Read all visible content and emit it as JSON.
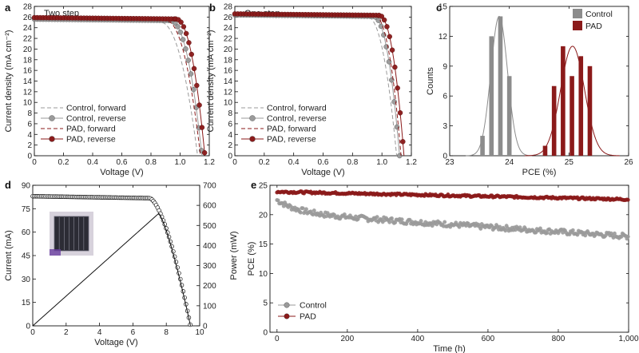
{
  "chart_data": [
    {
      "id": "a",
      "panel_letter": "a",
      "type": "line",
      "title": "Two step",
      "xlabel": "Voltage (V)",
      "ylabel": "Current density (mA cm⁻²)",
      "xlim": [
        0,
        1.2
      ],
      "ylim": [
        0,
        28
      ],
      "xticks": [
        "0",
        "0.2",
        "0.4",
        "0.6",
        "0.8",
        "1.0",
        "1.2"
      ],
      "yticks": [
        "0",
        "2",
        "4",
        "6",
        "8",
        "10",
        "12",
        "14",
        "16",
        "18",
        "20",
        "22",
        "24",
        "26",
        "28"
      ],
      "legend_position": "bottom-left",
      "series": [
        {
          "name": "Control, forward",
          "color": "#9a9a9a",
          "style": "dashed",
          "jsc": 25.3,
          "voc": 1.12,
          "knee": 0.86
        },
        {
          "name": "Control, reverse",
          "color": "#9a9a9a",
          "style": "line-marker",
          "jsc": 25.6,
          "voc": 1.15,
          "knee": 0.93
        },
        {
          "name": "PAD, forward",
          "color": "#8b1a1a",
          "style": "dashed",
          "jsc": 25.6,
          "voc": 1.14,
          "knee": 0.9
        },
        {
          "name": "PAD, reverse",
          "color": "#8b1a1a",
          "style": "line-marker",
          "jsc": 25.9,
          "voc": 1.17,
          "knee": 0.97
        }
      ]
    },
    {
      "id": "b",
      "panel_letter": "b",
      "type": "line",
      "title": "One step",
      "xlabel": "Voltage (V)",
      "ylabel": "Current density (mA cm⁻²)",
      "xlim": [
        0,
        1.2
      ],
      "ylim": [
        0,
        28
      ],
      "xticks": [
        "0",
        "0.2",
        "0.4",
        "0.6",
        "0.8",
        "1.0",
        "1.2"
      ],
      "yticks": [
        "0",
        "2",
        "4",
        "6",
        "8",
        "10",
        "12",
        "14",
        "16",
        "18",
        "20",
        "22",
        "24",
        "26",
        "28"
      ],
      "legend_position": "bottom-left",
      "series": [
        {
          "name": "Control, forward",
          "color": "#9a9a9a",
          "style": "dashed",
          "jsc": 26.3,
          "voc": 1.1,
          "knee": 0.9
        },
        {
          "name": "Control, reverse",
          "color": "#9a9a9a",
          "style": "line-marker",
          "jsc": 26.4,
          "voc": 1.12,
          "knee": 0.94
        },
        {
          "name": "PAD, forward",
          "color": "#8b1a1a",
          "style": "dashed",
          "jsc": 26.5,
          "voc": 1.13,
          "knee": 0.95
        },
        {
          "name": "PAD, reverse",
          "color": "#8b1a1a",
          "style": "line-marker",
          "jsc": 26.6,
          "voc": 1.15,
          "knee": 0.98
        }
      ]
    },
    {
      "id": "c",
      "panel_letter": "c",
      "type": "bar",
      "title": "",
      "xlabel": "PCE (%)",
      "ylabel": "Counts",
      "xlim": [
        23,
        26
      ],
      "ylim": [
        0,
        15
      ],
      "xticks": [
        "23",
        "24",
        "25",
        "26"
      ],
      "yticks": [
        "0",
        "3",
        "6",
        "9",
        "12",
        "15"
      ],
      "legend_position": "top-right",
      "series": [
        {
          "name": "Control",
          "color": "#8c8c8c",
          "bins": [
            23.55,
            23.7,
            23.85,
            24.0
          ],
          "values": [
            2,
            12,
            14,
            8
          ],
          "fit_mean": 23.83,
          "fit_sd": 0.14,
          "fit_peak": 14
        },
        {
          "name": "PAD",
          "color": "#8b1a1a",
          "bins": [
            24.6,
            24.75,
            24.9,
            25.05,
            25.2,
            25.35
          ],
          "values": [
            1,
            7,
            11,
            8,
            10,
            9
          ],
          "fit_mean": 25.06,
          "fit_sd": 0.2,
          "fit_peak": 11
        }
      ]
    },
    {
      "id": "d",
      "panel_letter": "d",
      "type": "line",
      "title": "",
      "xlabel": "Voltage (V)",
      "ylabel": "Current (mA)",
      "y2label": "Power (mW)",
      "xlim": [
        0,
        10
      ],
      "ylim": [
        0,
        90
      ],
      "y2lim": [
        0,
        700
      ],
      "xticks": [
        "0",
        "2",
        "4",
        "6",
        "8",
        "10"
      ],
      "yticks": [
        "0",
        "15",
        "30",
        "45",
        "60",
        "75",
        "90"
      ],
      "y2ticks": [
        "0",
        "100",
        "200",
        "300",
        "400",
        "500",
        "600",
        "700"
      ],
      "series": [
        {
          "name": "Current",
          "color": "#111111",
          "style": "markers",
          "isc": 83,
          "voc": 9.45,
          "knee": 7.0
        },
        {
          "name": "Power",
          "color": "#111111",
          "style": "line",
          "peak_v": 7.55,
          "peak_p": 560
        }
      ]
    },
    {
      "id": "e",
      "panel_letter": "e",
      "type": "scatter",
      "title": "",
      "xlabel": "Time (h)",
      "ylabel": "PCE (%)",
      "xlim": [
        -20,
        1000
      ],
      "ylim": [
        0,
        25
      ],
      "xticks": [
        "0",
        "200",
        "400",
        "600",
        "800",
        "1,000"
      ],
      "yticks": [
        "0",
        "5",
        "10",
        "15",
        "20",
        "25"
      ],
      "legend_position": "bottom-left",
      "series": [
        {
          "name": "Control",
          "color": "#9a9a9a",
          "start": 22.5,
          "end": 16.3
        },
        {
          "name": "PAD",
          "color": "#8b1a1a",
          "start": 23.9,
          "end": 22.6
        }
      ]
    }
  ]
}
